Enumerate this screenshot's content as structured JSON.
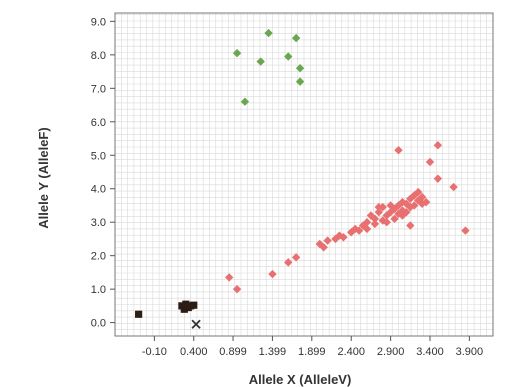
{
  "chart_data": {
    "type": "scatter",
    "xlabel": "Allele X (AlleleV)",
    "ylabel": "Allele Y (AlleleF)",
    "xlim": [
      -0.6,
      4.2
    ],
    "ylim": [
      -0.4,
      9.25
    ],
    "x_ticks": [
      -0.1,
      0.4,
      0.899,
      1.399,
      1.899,
      2.4,
      2.9,
      3.4,
      3.9
    ],
    "x_tick_labels": [
      "-0.10",
      "0.400",
      "0.899",
      "1.399",
      "1.899",
      "2.400",
      "2.900",
      "3.400",
      "3.900"
    ],
    "y_ticks": [
      0,
      1,
      2,
      3,
      4,
      5,
      6,
      7,
      8,
      9
    ],
    "y_tick_labels": [
      "0.0",
      "1.0",
      "2.0",
      "3.0",
      "4.0",
      "5.0",
      "6.0",
      "7.0",
      "8.0",
      "9.0"
    ],
    "grid": true,
    "legend": "none",
    "colors": {
      "green_cluster": "#6aa84f",
      "red_cluster": "#e87070",
      "black_cluster": "#2b1d14",
      "cross": "#333333",
      "grid": "#d9d9d9",
      "frame": "#777777"
    },
    "series": [
      {
        "marker": "diamond",
        "color": "#6aa84f",
        "points": [
          [
            0.95,
            8.05
          ],
          [
            1.35,
            8.65
          ],
          [
            1.25,
            7.8
          ],
          [
            1.6,
            7.95
          ],
          [
            1.7,
            8.5
          ],
          [
            1.75,
            7.6
          ],
          [
            1.75,
            7.2
          ],
          [
            1.05,
            6.6
          ]
        ]
      },
      {
        "marker": "diamond",
        "color": "#e87070",
        "points": [
          [
            0.85,
            1.35
          ],
          [
            0.95,
            1.0
          ],
          [
            1.4,
            1.45
          ],
          [
            1.6,
            1.8
          ],
          [
            1.7,
            1.95
          ],
          [
            2.0,
            2.35
          ],
          [
            2.05,
            2.25
          ],
          [
            2.1,
            2.45
          ],
          [
            2.2,
            2.5
          ],
          [
            2.25,
            2.6
          ],
          [
            2.3,
            2.55
          ],
          [
            2.4,
            2.7
          ],
          [
            2.45,
            2.8
          ],
          [
            2.5,
            2.75
          ],
          [
            2.55,
            2.9
          ],
          [
            2.6,
            3.0
          ],
          [
            2.6,
            2.8
          ],
          [
            2.65,
            3.2
          ],
          [
            2.7,
            3.1
          ],
          [
            2.7,
            2.95
          ],
          [
            2.75,
            3.3
          ],
          [
            2.8,
            3.05
          ],
          [
            2.8,
            3.45
          ],
          [
            2.85,
            3.2
          ],
          [
            2.9,
            3.5
          ],
          [
            2.9,
            3.3
          ],
          [
            2.95,
            3.1
          ],
          [
            2.95,
            3.4
          ],
          [
            3.0,
            3.5
          ],
          [
            3.0,
            3.25
          ],
          [
            3.05,
            3.6
          ],
          [
            3.05,
            3.35
          ],
          [
            3.1,
            3.55
          ],
          [
            3.1,
            3.3
          ],
          [
            3.15,
            3.7
          ],
          [
            3.15,
            3.45
          ],
          [
            3.2,
            3.8
          ],
          [
            3.2,
            3.5
          ],
          [
            3.25,
            3.65
          ],
          [
            3.25,
            3.9
          ],
          [
            3.3,
            3.75
          ],
          [
            3.3,
            3.55
          ],
          [
            3.35,
            3.6
          ],
          [
            3.15,
            2.9
          ],
          [
            2.85,
            3.0
          ],
          [
            2.75,
            3.45
          ],
          [
            3.05,
            3.2
          ],
          [
            3.0,
            5.15
          ],
          [
            3.4,
            4.8
          ],
          [
            3.5,
            5.3
          ],
          [
            3.5,
            4.3
          ],
          [
            3.7,
            4.05
          ],
          [
            3.85,
            2.75
          ]
        ]
      },
      {
        "marker": "square",
        "color": "#2b1d14",
        "points": [
          [
            -0.3,
            0.25
          ],
          [
            0.25,
            0.5
          ],
          [
            0.28,
            0.4
          ],
          [
            0.3,
            0.55
          ],
          [
            0.33,
            0.45
          ],
          [
            0.36,
            0.5
          ],
          [
            0.4,
            0.52
          ]
        ]
      },
      {
        "marker": "cross",
        "color": "#333333",
        "points": [
          [
            0.43,
            -0.05
          ]
        ]
      }
    ]
  }
}
